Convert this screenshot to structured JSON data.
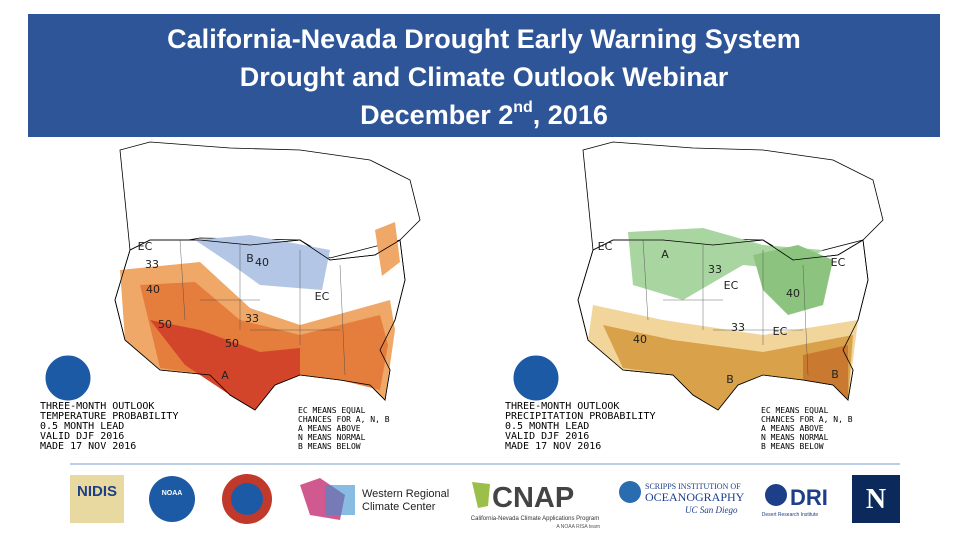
{
  "header": {
    "line1": "California-Nevada Drought Early Warning System",
    "line2": "Drought and Climate Outlook Webinar",
    "date_main": "December 2",
    "date_sup": "nd",
    "date_end": ", 2016"
  },
  "maps": [
    {
      "caption": [
        "THREE-MONTH OUTLOOK",
        "TEMPERATURE PROBABILITY",
        "0.5 MONTH LEAD",
        "VALID DJF 2016",
        "MADE 17 NOV 2016"
      ],
      "legend": [
        "EC MEANS EQUAL",
        "CHANCES FOR A, N, B",
        "A MEANS ABOVE",
        "N MEANS NORMAL",
        "B MEANS BELOW"
      ],
      "labels": [
        "EC",
        "B",
        "40",
        "33",
        "40",
        "50",
        "EC",
        "33",
        "50",
        "A"
      ]
    },
    {
      "caption": [
        "THREE-MONTH OUTLOOK",
        "PRECIPITATION PROBABILITY",
        "0.5 MONTH LEAD",
        "VALID DJF 2016",
        "MADE 17 NOV 2016"
      ],
      "legend": [
        "EC MEANS EQUAL",
        "CHANCES FOR A, N, B",
        "A MEANS ABOVE",
        "N MEANS NORMAL",
        "B MEANS BELOW"
      ],
      "labels": [
        "EC",
        "A",
        "33",
        "EC",
        "40",
        "EC",
        "33",
        "EC",
        "40",
        "B",
        "B"
      ]
    }
  ],
  "logos": {
    "nidis": "NIDIS",
    "noaa": "NOAA",
    "wrcc_1": "Western Regional",
    "wrcc_2": "Climate Center",
    "cnap": "CNAP",
    "cnap_sub": "California-Nevada Climate Applications Program",
    "cnap_sub2": "A NOAA RISA team",
    "scripps_1": "SCRIPPS INSTITUTION OF",
    "scripps_2": "OCEANOGRAPHY",
    "scripps_3": "UC San Diego",
    "dri": "DRI",
    "dri_sub": "Desert Research Institute",
    "unr": "N"
  }
}
